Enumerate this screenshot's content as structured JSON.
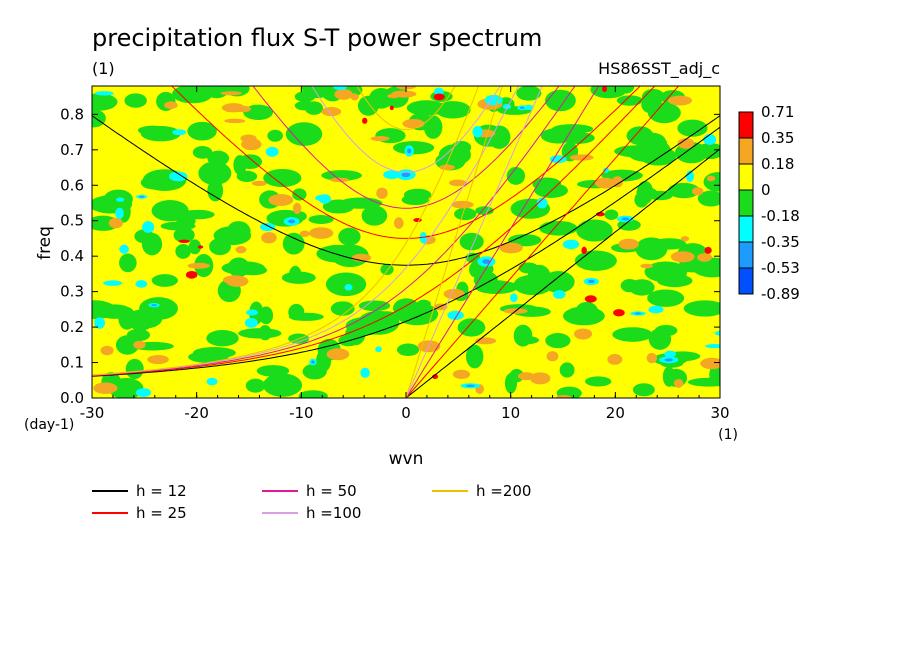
{
  "chart_data": {
    "type": "heatmap",
    "title": "precipitation flux S-T power spectrum",
    "subtitle_left": "(1)",
    "subtitle_right": "HS86SST_adj_c",
    "xlabel": "wvn",
    "ylabel": "freq",
    "x_units": "(1)",
    "y_units": "(day-1)",
    "xlim": [
      -30,
      30
    ],
    "ylim": [
      0,
      0.88
    ],
    "x_ticks": [
      {
        "value": -30,
        "label": "-30"
      },
      {
        "value": -20,
        "label": "-20"
      },
      {
        "value": -10,
        "label": "-10"
      },
      {
        "value": 0,
        "label": "0"
      },
      {
        "value": 10,
        "label": "10"
      },
      {
        "value": 20,
        "label": "20"
      },
      {
        "value": 30,
        "label": "30"
      }
    ],
    "y_ticks": [
      {
        "value": 0.0,
        "label": "0.0"
      },
      {
        "value": 0.1,
        "label": "0.1"
      },
      {
        "value": 0.2,
        "label": "0.2"
      },
      {
        "value": 0.3,
        "label": "0.3"
      },
      {
        "value": 0.4,
        "label": "0.4"
      },
      {
        "value": 0.5,
        "label": "0.5"
      },
      {
        "value": 0.6,
        "label": "0.6"
      },
      {
        "value": 0.7,
        "label": "0.7"
      },
      {
        "value": 0.8,
        "label": "0.8"
      }
    ],
    "colorbar": [
      {
        "label": "0.71",
        "color": "#ff0000"
      },
      {
        "label": "0.35",
        "color": "#f5a623"
      },
      {
        "label": "0.18",
        "color": "#ffff00"
      },
      {
        "label": "0",
        "color": "#1adc1a"
      },
      {
        "label": "-0.18",
        "color": "#00ffff"
      },
      {
        "label": "-0.35",
        "color": "#1e9bff"
      },
      {
        "label": "-0.53",
        "color": "#0050ff"
      },
      {
        "label": "-0.89",
        "color": ""
      }
    ],
    "dispersion_curves": [
      {
        "name": "h = 12",
        "color": "#000000",
        "equivalent_depth": 12
      },
      {
        "name": "h = 25",
        "color": "#ff0000",
        "equivalent_depth": 25
      },
      {
        "name": "h = 50",
        "color": "#e0189a",
        "equivalent_depth": 50
      },
      {
        "name": "h =100",
        "color": "#d8a0e0",
        "equivalent_depth": 100
      },
      {
        "name": "h =200",
        "color": "#f0c000",
        "equivalent_depth": 200
      }
    ]
  }
}
